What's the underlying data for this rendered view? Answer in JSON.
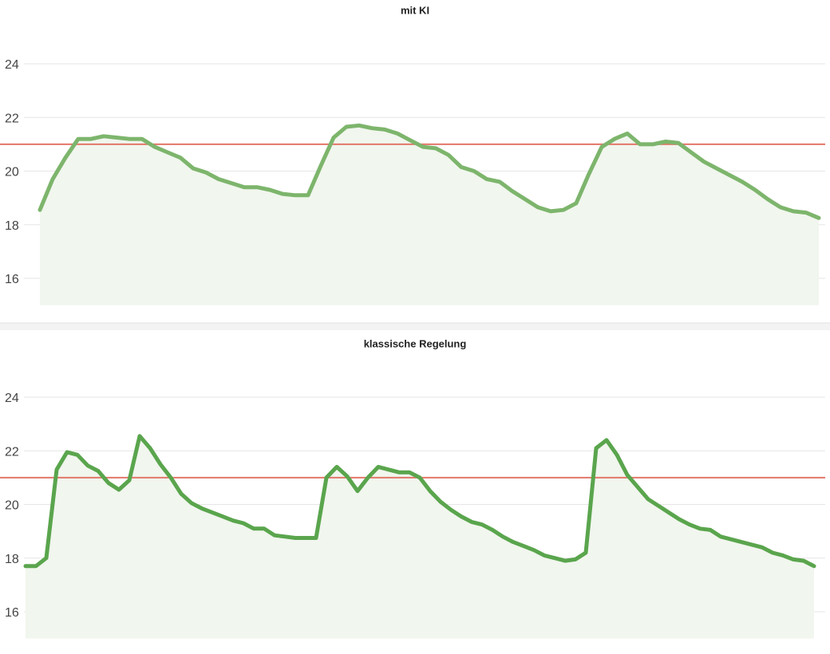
{
  "chart_data": [
    {
      "type": "area",
      "title": "mit KI",
      "color": "#7db56c",
      "area_color": "#f1f6ee",
      "ylim": [
        15,
        25
      ],
      "yticks": [
        16,
        18,
        20,
        22,
        24
      ],
      "grid": true,
      "reference_line": {
        "value": 21,
        "color": "#e2776a"
      },
      "values": [
        18.55,
        19.7,
        20.5,
        21.2,
        21.2,
        21.3,
        21.25,
        21.2,
        21.2,
        20.9,
        20.7,
        20.5,
        20.1,
        19.95,
        19.7,
        19.55,
        19.4,
        19.4,
        19.3,
        19.15,
        19.1,
        19.1,
        20.2,
        21.25,
        21.65,
        21.7,
        21.6,
        21.55,
        21.4,
        21.15,
        20.9,
        20.85,
        20.6,
        20.15,
        20.0,
        19.7,
        19.6,
        19.25,
        18.95,
        18.65,
        18.5,
        18.55,
        18.8,
        19.9,
        20.9,
        21.2,
        21.4,
        21.0,
        21.0,
        21.1,
        21.05,
        20.7,
        20.35,
        20.1,
        19.85,
        19.6,
        19.3,
        18.95,
        18.65,
        18.5,
        18.45,
        18.25
      ]
    },
    {
      "type": "area",
      "title": "klassische Regelung",
      "color": "#5aa54d",
      "area_color": "#f1f6ee",
      "ylim": [
        15,
        25
      ],
      "yticks": [
        16,
        18,
        20,
        22,
        24
      ],
      "grid": true,
      "reference_line": {
        "value": 21,
        "color": "#e2776a"
      },
      "values": [
        17.7,
        17.7,
        18.0,
        21.3,
        21.95,
        21.85,
        21.45,
        21.25,
        20.8,
        20.55,
        20.9,
        22.55,
        22.1,
        21.5,
        21.0,
        20.4,
        20.05,
        19.85,
        19.7,
        19.55,
        19.4,
        19.3,
        19.1,
        19.1,
        18.85,
        18.8,
        18.75,
        18.75,
        18.75,
        21.0,
        21.4,
        21.05,
        20.5,
        21.0,
        21.4,
        21.3,
        21.2,
        21.2,
        21.0,
        20.5,
        20.1,
        19.8,
        19.55,
        19.35,
        19.25,
        19.05,
        18.8,
        18.6,
        18.45,
        18.3,
        18.1,
        18.0,
        17.9,
        17.95,
        18.2,
        22.1,
        22.4,
        21.85,
        21.1,
        20.65,
        20.2,
        19.95,
        19.7,
        19.45,
        19.25,
        19.1,
        19.05,
        18.8,
        18.7,
        18.6,
        18.5,
        18.4,
        18.2,
        18.1,
        17.95,
        17.9,
        17.7
      ]
    }
  ]
}
